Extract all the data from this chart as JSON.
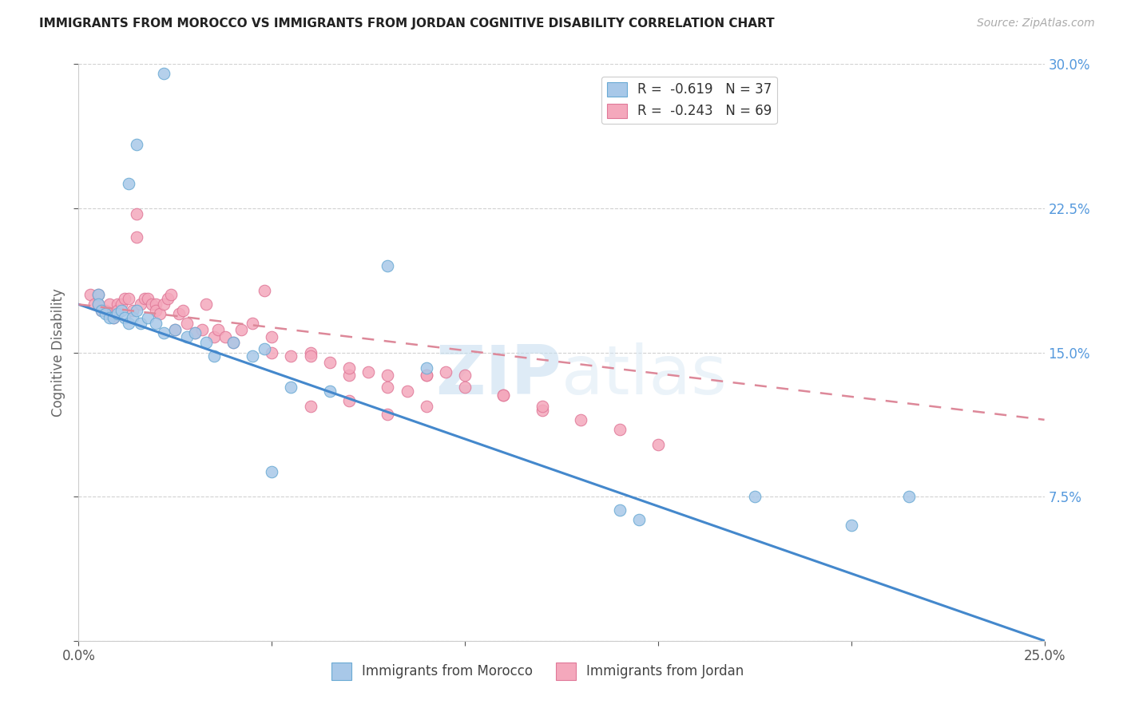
{
  "title": "IMMIGRANTS FROM MOROCCO VS IMMIGRANTS FROM JORDAN COGNITIVE DISABILITY CORRELATION CHART",
  "source": "Source: ZipAtlas.com",
  "ylabel": "Cognitive Disability",
  "x_min": 0.0,
  "x_max": 0.25,
  "y_min": 0.0,
  "y_max": 0.3,
  "morocco_color": "#a8c8e8",
  "jordan_color": "#f4a8bc",
  "morocco_edge": "#6aaad4",
  "jordan_edge": "#e07898",
  "line_morocco_color": "#4488cc",
  "line_jordan_color": "#dd8899",
  "legend_R_morocco": "R =  -0.619",
  "legend_N_morocco": "N = 37",
  "legend_R_jordan": "R =  -0.243",
  "legend_N_jordan": "N = 69",
  "watermark_zip": "ZIP",
  "watermark_atlas": "atlas",
  "background_color": "#ffffff",
  "morocco_scatter_x": [
    0.022,
    0.015,
    0.013,
    0.005,
    0.005,
    0.006,
    0.007,
    0.008,
    0.009,
    0.01,
    0.011,
    0.012,
    0.013,
    0.014,
    0.015,
    0.016,
    0.018,
    0.02,
    0.022,
    0.025,
    0.028,
    0.03,
    0.033,
    0.035,
    0.04,
    0.045,
    0.048,
    0.05,
    0.055,
    0.065,
    0.08,
    0.09,
    0.14,
    0.145,
    0.175,
    0.2,
    0.215
  ],
  "morocco_scatter_y": [
    0.295,
    0.258,
    0.238,
    0.18,
    0.175,
    0.172,
    0.17,
    0.168,
    0.168,
    0.17,
    0.172,
    0.168,
    0.165,
    0.168,
    0.172,
    0.165,
    0.168,
    0.165,
    0.16,
    0.162,
    0.158,
    0.16,
    0.155,
    0.148,
    0.155,
    0.148,
    0.152,
    0.088,
    0.132,
    0.13,
    0.195,
    0.142,
    0.068,
    0.063,
    0.075,
    0.06,
    0.075
  ],
  "jordan_scatter_x": [
    0.003,
    0.004,
    0.005,
    0.005,
    0.006,
    0.007,
    0.008,
    0.008,
    0.009,
    0.01,
    0.01,
    0.011,
    0.012,
    0.013,
    0.014,
    0.015,
    0.015,
    0.016,
    0.017,
    0.018,
    0.019,
    0.02,
    0.02,
    0.021,
    0.022,
    0.023,
    0.024,
    0.025,
    0.026,
    0.027,
    0.028,
    0.03,
    0.032,
    0.033,
    0.035,
    0.036,
    0.038,
    0.04,
    0.042,
    0.045,
    0.048,
    0.05,
    0.055,
    0.06,
    0.065,
    0.07,
    0.075,
    0.08,
    0.085,
    0.09,
    0.095,
    0.1,
    0.11,
    0.12,
    0.05,
    0.06,
    0.07,
    0.08,
    0.09,
    0.1,
    0.11,
    0.12,
    0.13,
    0.14,
    0.15,
    0.06,
    0.07,
    0.08,
    0.09
  ],
  "jordan_scatter_y": [
    0.18,
    0.175,
    0.18,
    0.175,
    0.172,
    0.172,
    0.175,
    0.17,
    0.168,
    0.175,
    0.172,
    0.175,
    0.178,
    0.178,
    0.172,
    0.222,
    0.21,
    0.175,
    0.178,
    0.178,
    0.175,
    0.175,
    0.172,
    0.17,
    0.175,
    0.178,
    0.18,
    0.162,
    0.17,
    0.172,
    0.165,
    0.16,
    0.162,
    0.175,
    0.158,
    0.162,
    0.158,
    0.155,
    0.162,
    0.165,
    0.182,
    0.15,
    0.148,
    0.15,
    0.145,
    0.138,
    0.14,
    0.132,
    0.13,
    0.138,
    0.14,
    0.138,
    0.128,
    0.12,
    0.158,
    0.148,
    0.142,
    0.138,
    0.138,
    0.132,
    0.128,
    0.122,
    0.115,
    0.11,
    0.102,
    0.122,
    0.125,
    0.118,
    0.122
  ]
}
